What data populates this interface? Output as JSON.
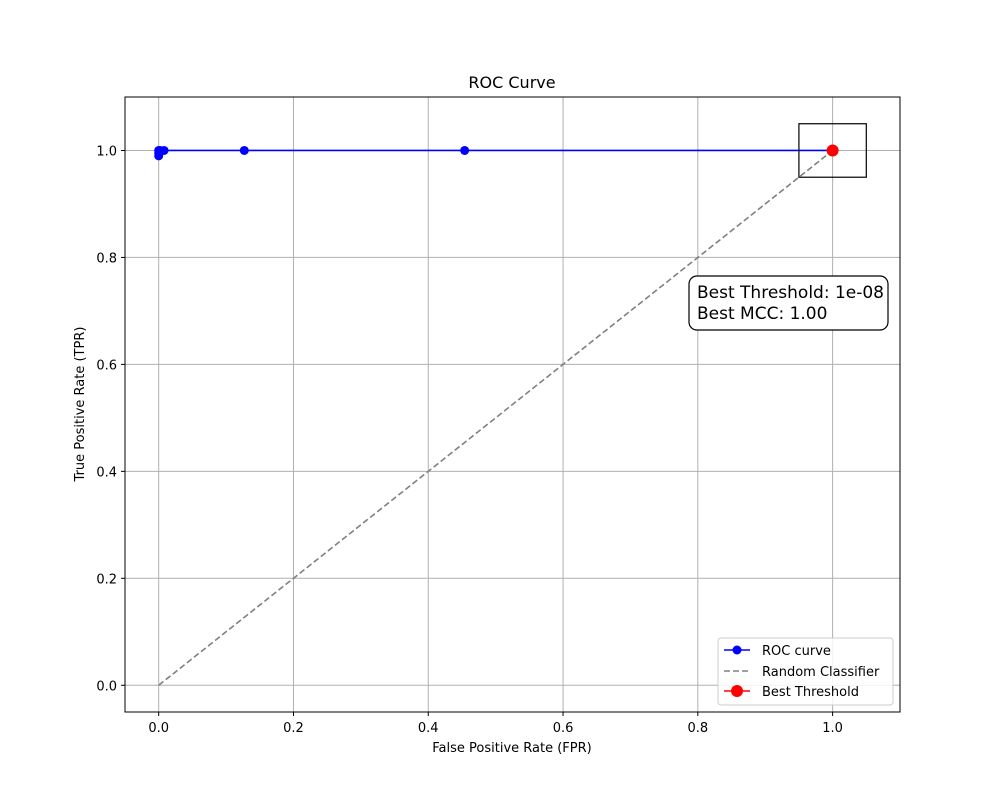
{
  "chart_data": {
    "type": "line",
    "title": "ROC Curve",
    "xlabel": "False Positive Rate (FPR)",
    "ylabel": "True Positive Rate (TPR)",
    "xlim": [
      -0.05,
      1.1
    ],
    "ylim": [
      -0.05,
      1.1
    ],
    "xticks": [
      0.0,
      0.2,
      0.4,
      0.6,
      0.8,
      1.0
    ],
    "yticks": [
      0.0,
      0.2,
      0.4,
      0.6,
      0.8,
      1.0
    ],
    "xtick_labels": [
      "0.0",
      "0.2",
      "0.4",
      "0.6",
      "0.8",
      "1.0"
    ],
    "ytick_labels": [
      "0.0",
      "0.2",
      "0.4",
      "0.6",
      "0.8",
      "1.0"
    ],
    "grid": true,
    "legend_position": "bottom-right",
    "series": [
      {
        "name": "ROC curve",
        "style": "solid line with circle markers",
        "color": "#0000ff",
        "points": [
          {
            "x": 0.0,
            "y": 0.99
          },
          {
            "x": 0.0,
            "y": 0.995
          },
          {
            "x": 0.0,
            "y": 1.0
          },
          {
            "x": 0.002,
            "y": 1.0
          },
          {
            "x": 0.008,
            "y": 1.0
          },
          {
            "x": 0.127,
            "y": 1.0
          },
          {
            "x": 0.454,
            "y": 1.0
          },
          {
            "x": 1.0,
            "y": 1.0
          }
        ]
      },
      {
        "name": "Random Classifier",
        "style": "dashed line",
        "color": "#808080",
        "points": [
          {
            "x": 0.0,
            "y": 0.0
          },
          {
            "x": 1.0,
            "y": 1.0
          }
        ]
      },
      {
        "name": "Best Threshold",
        "style": "large circle marker",
        "color": "#ff0000",
        "points": [
          {
            "x": 1.0,
            "y": 1.0
          }
        ]
      }
    ],
    "highlight_box": {
      "x0": 0.95,
      "x1": 1.05,
      "y0": 0.95,
      "y1": 1.05
    },
    "annotation": {
      "lines": [
        "Best Threshold: 1e-08",
        "Best MCC: 1.00"
      ],
      "anchor": {
        "x": 0.8,
        "y": 0.7
      }
    }
  }
}
